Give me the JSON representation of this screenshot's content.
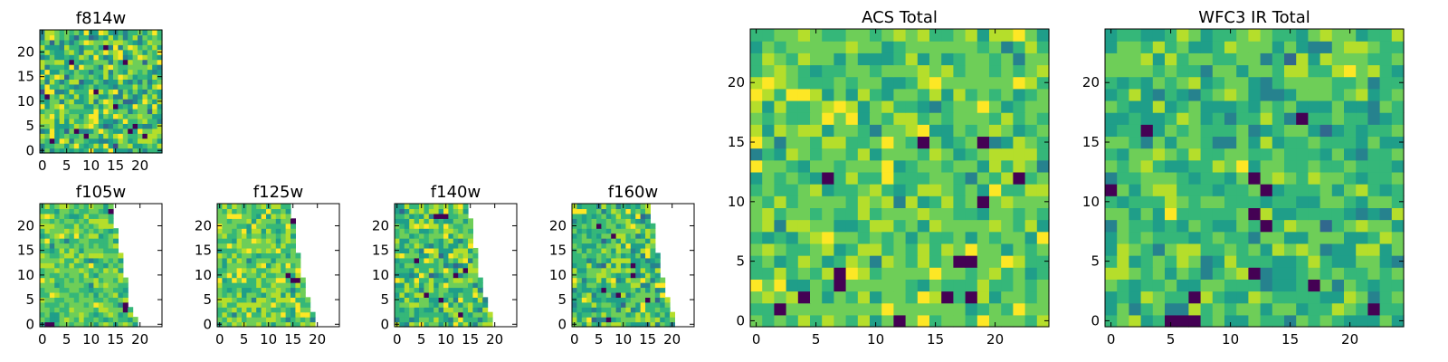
{
  "figure": {
    "colormap": "viridis",
    "colors": {
      "viridis": [
        "#440154",
        "#482878",
        "#3e4989",
        "#31688e",
        "#26828e",
        "#1f9e89",
        "#35b779",
        "#6ece58",
        "#b5de2b",
        "#fde725"
      ],
      "background": "#ffffff",
      "axis": "#000000"
    }
  },
  "chart_data": [
    {
      "type": "heatmap",
      "title": "f814w",
      "grid_size": 25,
      "x_extent": [
        -0.5,
        24.5
      ],
      "y_extent": [
        -0.5,
        24.5
      ],
      "xticks": [
        0,
        5,
        10,
        15,
        20
      ],
      "yticks": [
        0,
        5,
        10,
        15,
        20
      ],
      "value_range": [
        0,
        1
      ],
      "mean": 0.68,
      "spread": 0.2,
      "seed": 11,
      "valid_x_max_by_row": null,
      "dark_cells": [
        [
          19,
          5
        ],
        [
          18,
          4
        ],
        [
          7,
          4
        ],
        [
          2,
          2
        ],
        [
          11,
          12
        ],
        [
          21,
          3
        ],
        [
          6,
          18
        ],
        [
          15,
          9
        ],
        [
          9,
          3
        ],
        [
          17,
          18
        ],
        [
          1,
          11
        ],
        [
          13,
          21
        ]
      ]
    },
    {
      "type": "heatmap",
      "title": "f105w",
      "grid_size": 25,
      "x_extent": [
        -0.5,
        24.5
      ],
      "y_extent": [
        -0.5,
        24.5
      ],
      "xticks": [
        0,
        5,
        10,
        15,
        20
      ],
      "yticks": [
        0,
        5,
        10,
        15,
        20
      ],
      "value_range": [
        0,
        1
      ],
      "mean": 0.72,
      "spread": 0.12,
      "seed": 21,
      "valid_x_max_by_row": [
        19,
        19,
        18,
        18,
        17,
        17,
        17,
        17,
        17,
        17,
        16,
        16,
        16,
        16,
        16,
        15,
        15,
        15,
        15,
        15,
        14,
        14,
        14,
        14,
        14
      ],
      "dark_cells": [
        [
          1,
          0
        ],
        [
          2,
          0
        ],
        [
          17,
          4
        ],
        [
          17,
          3
        ],
        [
          14,
          23
        ]
      ]
    },
    {
      "type": "heatmap",
      "title": "f125w",
      "grid_size": 25,
      "x_extent": [
        -0.5,
        24.5
      ],
      "y_extent": [
        -0.5,
        24.5
      ],
      "xticks": [
        0,
        5,
        10,
        15,
        20
      ],
      "yticks": [
        0,
        5,
        10,
        15,
        20
      ],
      "value_range": [
        0,
        1
      ],
      "mean": 0.74,
      "spread": 0.13,
      "seed": 31,
      "valid_x_max_by_row": [
        19,
        19,
        19,
        18,
        18,
        18,
        17,
        17,
        17,
        17,
        16,
        16,
        16,
        16,
        16,
        15,
        15,
        15,
        15,
        15,
        15,
        15,
        14,
        14,
        14
      ],
      "dark_cells": [
        [
          15,
          21
        ],
        [
          14,
          10
        ],
        [
          15,
          9
        ],
        [
          16,
          9
        ]
      ]
    },
    {
      "type": "heatmap",
      "title": "f140w",
      "grid_size": 25,
      "x_extent": [
        -0.5,
        24.5
      ],
      "y_extent": [
        -0.5,
        24.5
      ],
      "xticks": [
        0,
        5,
        10,
        15,
        20
      ],
      "yticks": [
        0,
        5,
        10,
        15,
        20
      ],
      "value_range": [
        0,
        1
      ],
      "mean": 0.68,
      "spread": 0.16,
      "seed": 41,
      "valid_x_max_by_row": [
        19,
        19,
        19,
        18,
        18,
        18,
        17,
        17,
        17,
        17,
        16,
        16,
        16,
        16,
        16,
        16,
        15,
        15,
        15,
        15,
        15,
        15,
        14,
        14,
        14
      ],
      "dark_cells": [
        [
          8,
          22
        ],
        [
          9,
          22
        ],
        [
          10,
          22
        ],
        [
          12,
          10
        ],
        [
          14,
          11
        ],
        [
          6,
          6
        ],
        [
          9,
          5
        ],
        [
          4,
          13
        ],
        [
          13,
          2
        ]
      ]
    },
    {
      "type": "heatmap",
      "title": "f160w",
      "grid_size": 25,
      "x_extent": [
        -0.5,
        24.5
      ],
      "y_extent": [
        -0.5,
        24.5
      ],
      "xticks": [
        0,
        5,
        10,
        15,
        20
      ],
      "yticks": [
        0,
        5,
        10,
        15,
        20
      ],
      "value_range": [
        0,
        1
      ],
      "mean": 0.67,
      "spread": 0.16,
      "seed": 51,
      "valid_x_max_by_row": [
        20,
        20,
        20,
        19,
        19,
        19,
        18,
        18,
        18,
        18,
        17,
        17,
        17,
        17,
        17,
        16,
        16,
        16,
        16,
        16,
        16,
        15,
        15,
        15,
        15
      ],
      "dark_cells": [
        [
          5,
          20
        ],
        [
          8,
          18
        ],
        [
          12,
          12
        ],
        [
          6,
          7
        ],
        [
          9,
          6
        ],
        [
          15,
          5
        ],
        [
          7,
          1
        ],
        [
          12,
          10
        ]
      ]
    },
    {
      "type": "heatmap",
      "title": "ACS Total",
      "grid_size": 25,
      "x_extent": [
        -0.5,
        24.5
      ],
      "y_extent": [
        -0.5,
        24.5
      ],
      "xticks": [
        0,
        5,
        10,
        15,
        20
      ],
      "yticks": [
        0,
        5,
        10,
        15,
        20
      ],
      "value_range": [
        0,
        1
      ],
      "mean": 0.72,
      "spread": 0.13,
      "seed": 61,
      "valid_x_max_by_row": null,
      "dark_cells": [
        [
          7,
          4
        ],
        [
          7,
          3
        ],
        [
          4,
          2
        ],
        [
          12,
          0
        ],
        [
          17,
          5
        ],
        [
          18,
          5
        ],
        [
          19,
          10
        ],
        [
          14,
          15
        ],
        [
          19,
          15
        ],
        [
          6,
          12
        ],
        [
          22,
          12
        ],
        [
          18,
          2
        ],
        [
          2,
          1
        ],
        [
          16,
          2
        ]
      ]
    },
    {
      "type": "heatmap",
      "title": "WFC3 IR Total",
      "grid_size": 25,
      "x_extent": [
        -0.5,
        24.5
      ],
      "y_extent": [
        -0.5,
        24.5
      ],
      "xticks": [
        0,
        5,
        10,
        15,
        20
      ],
      "yticks": [
        0,
        5,
        10,
        15,
        20
      ],
      "value_range": [
        0,
        1
      ],
      "mean": 0.66,
      "spread": 0.13,
      "seed": 71,
      "valid_x_max_by_row": null,
      "dark_cells": [
        [
          6,
          0
        ],
        [
          7,
          0
        ],
        [
          5,
          0
        ],
        [
          7,
          2
        ],
        [
          13,
          8
        ],
        [
          12,
          9
        ],
        [
          13,
          11
        ],
        [
          12,
          12
        ],
        [
          16,
          17
        ],
        [
          3,
          16
        ],
        [
          17,
          3
        ],
        [
          12,
          4
        ],
        [
          0,
          11
        ],
        [
          22,
          1
        ]
      ]
    }
  ]
}
